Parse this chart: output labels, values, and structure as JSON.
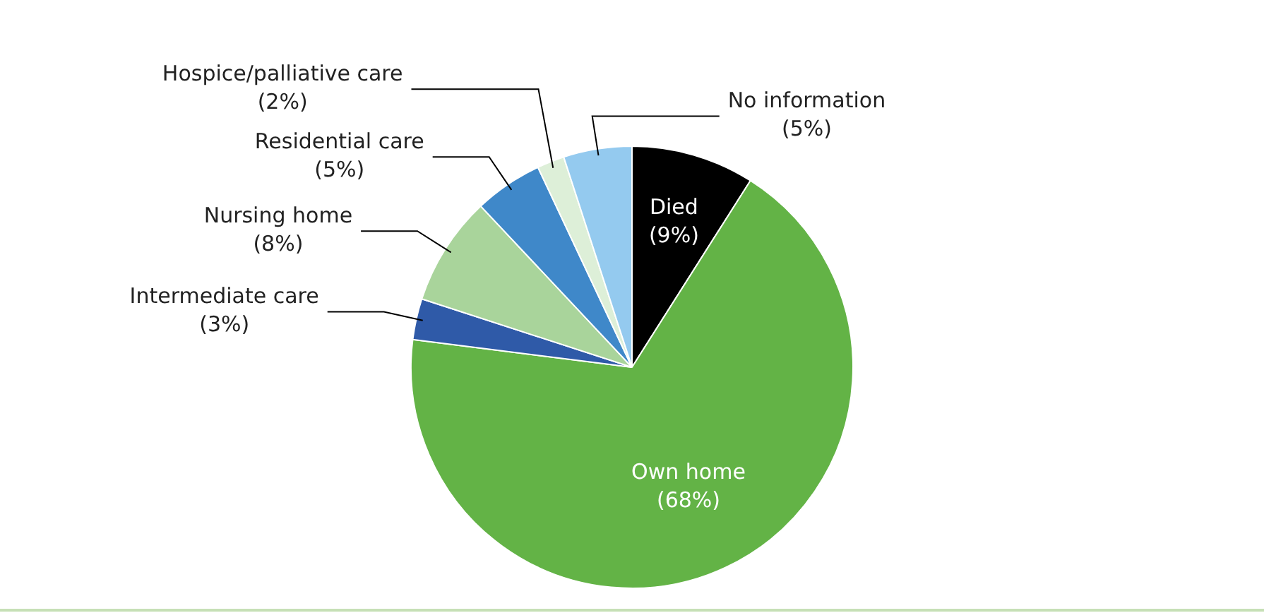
{
  "chart_data": {
    "type": "pie",
    "categories": [
      "Died",
      "Own home",
      "Intermediate care",
      "Nursing home",
      "Residential care",
      "Hospice/palliative care",
      "No information"
    ],
    "values": [
      9,
      68,
      3,
      8,
      5,
      2,
      5
    ],
    "value_labels": [
      "(9%)",
      "(68%)",
      "(3%)",
      "(8%)",
      "(5%)",
      "(2%)",
      "(5%)"
    ],
    "colors": [
      "#000000",
      "#63b346",
      "#2f5aa8",
      "#a9d49b",
      "#3f88c9",
      "#ddefd8",
      "#94caef"
    ],
    "legend": false
  }
}
